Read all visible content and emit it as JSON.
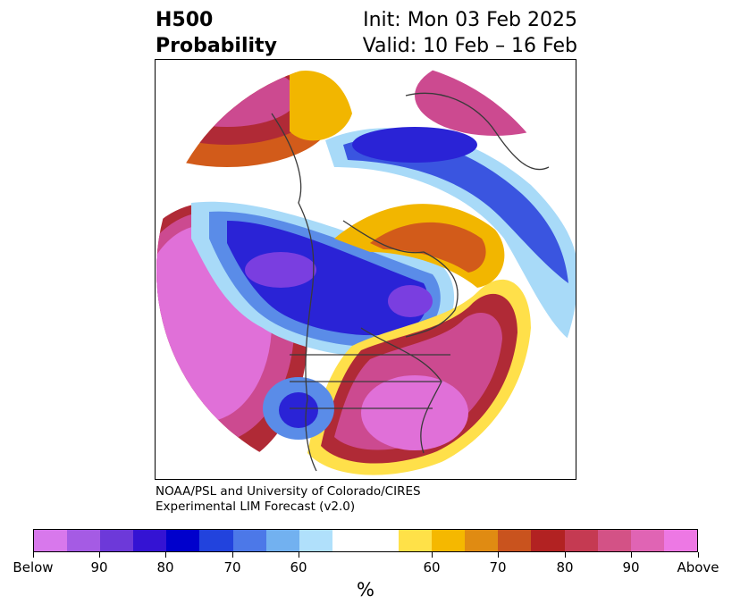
{
  "title": {
    "variable": "H500",
    "kind": "Probability",
    "init": "Init: Mon 03 Feb 2025",
    "valid": "Valid: 10 Feb – 16 Feb"
  },
  "credit": {
    "line1": "NOAA/PSL and University of Colorado/CIRES",
    "line2": "Experimental LIM Forecast (v2.0)"
  },
  "colorbar": {
    "colors": [
      "#d878ec",
      "#a55be4",
      "#6d39d9",
      "#3413d3",
      "#0000cc",
      "#2243dd",
      "#4c78e8",
      "#72b1f0",
      "#b0e0fb",
      "#ffffff",
      "#ffe148",
      "#f5b800",
      "#e08b12",
      "#c9531e",
      "#b22222",
      "#c53a52",
      "#d35286",
      "#e064b4",
      "#ed78e4"
    ],
    "tick_labels": [
      "Below",
      "90",
      "80",
      "70",
      "60",
      "60",
      "70",
      "80",
      "90",
      "Above"
    ],
    "unit": "%"
  },
  "map": {
    "projection": "north polar stereographic",
    "region": "North America / Northern Hemisphere",
    "below_colors": [
      "#7a3ee0",
      "#2a23d6",
      "#3a55e0",
      "#5a8ce8",
      "#a8daf8"
    ],
    "above_colors": [
      "#e070d8",
      "#cc4a90",
      "#b02a36",
      "#d25b1a",
      "#f2b600",
      "#ffe04a"
    ]
  }
}
